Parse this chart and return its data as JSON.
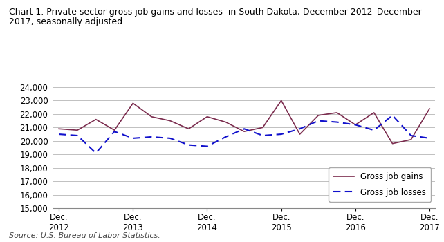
{
  "title": "Chart 1. Private sector gross job gains and losses  in South Dakota, December 2012–December\n2017, seasonally adjusted",
  "source": "Source: U.S. Bureau of Labor Statistics.",
  "gains": [
    20900,
    20800,
    21600,
    20800,
    22800,
    21800,
    21500,
    20900,
    21800,
    21400,
    20700,
    21000,
    23000,
    20500,
    21900,
    22100,
    21200,
    22100,
    19800,
    20100,
    22400
  ],
  "losses": [
    20500,
    20400,
    19100,
    20700,
    20200,
    20300,
    20200,
    19700,
    19600,
    20300,
    20900,
    20400,
    20500,
    20900,
    21500,
    21400,
    21200,
    20800,
    21900,
    20400,
    20200
  ],
  "x_ticks": [
    0,
    4,
    8,
    12,
    16,
    20
  ],
  "x_tick_labels": [
    "Dec.\n2012",
    "Dec.\n2013",
    "Dec.\n2014",
    "Dec.\n2015",
    "Dec.\n2016",
    "Dec.\n2017"
  ],
  "ylim": [
    15000,
    24000
  ],
  "yticks": [
    15000,
    16000,
    17000,
    18000,
    19000,
    20000,
    21000,
    22000,
    23000,
    24000
  ],
  "gains_color": "#7B2C4E",
  "losses_color": "#1111CC",
  "background_color": "#FFFFFF",
  "grid_color": "#C0C0C0",
  "legend_labels": [
    "Gross job gains",
    "Gross job losses"
  ],
  "title_fontsize": 9,
  "axis_fontsize": 8.5,
  "source_fontsize": 8
}
